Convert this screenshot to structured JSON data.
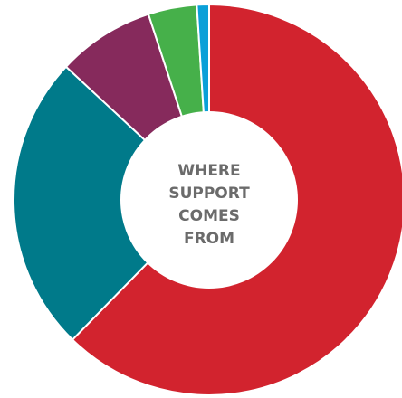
{
  "chart_data": {
    "type": "pie",
    "variant": "donut",
    "center_label_lines": [
      "WHERE",
      "SUPPORT",
      "COMES",
      "FROM"
    ],
    "slices": [
      {
        "value": 62.0,
        "color": "#d2232e"
      },
      {
        "value": 24.5,
        "color": "#007a8a"
      },
      {
        "value": 8.0,
        "color": "#862a5c"
      },
      {
        "value": 4.0,
        "color": "#46b04a"
      },
      {
        "value": 1.0,
        "color": "#0aa0d8"
      }
    ],
    "start_angle_deg": 0,
    "direction": "clockwise",
    "legend": "none"
  }
}
